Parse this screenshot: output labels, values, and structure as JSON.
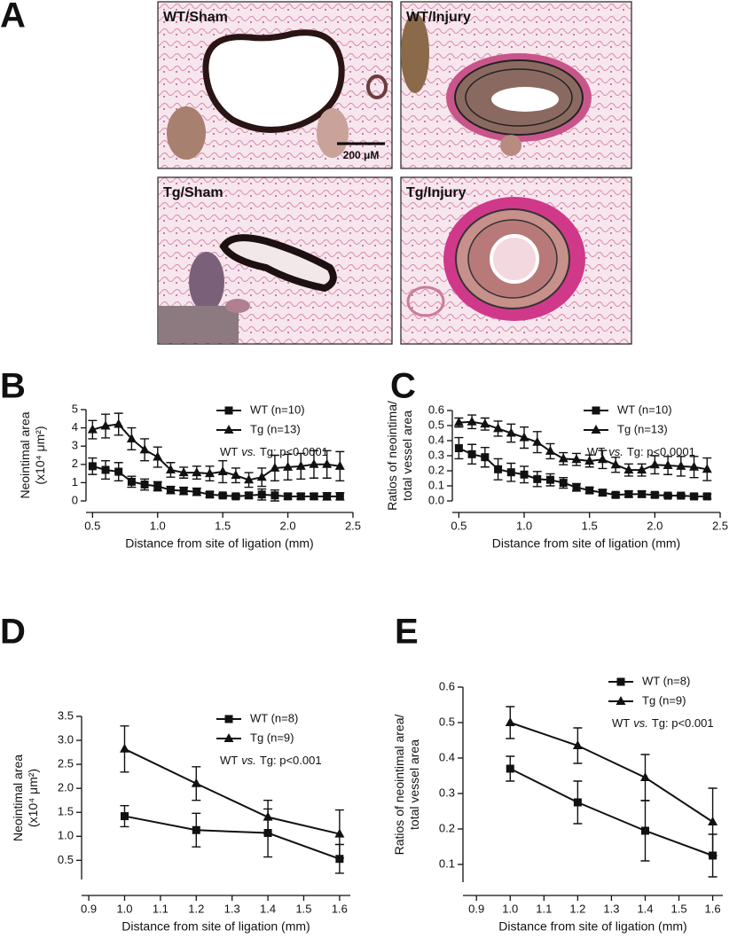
{
  "panel_a": {
    "label": "A",
    "images": [
      {
        "label": "WT/Sham"
      },
      {
        "label": "WT/Injury"
      },
      {
        "label": "Tg/Sham"
      },
      {
        "label": "Tg/Injury"
      }
    ],
    "scale_bar": "200 μM"
  },
  "chart_data": [
    {
      "type": "line",
      "panel_label": "B",
      "ylabel": [
        "Neointimal area",
        "(x10⁴ μm²)"
      ],
      "xlabel": "Distance from site of ligation (mm)",
      "x": [
        0.5,
        0.6,
        0.7,
        0.8,
        0.9,
        1.0,
        1.1,
        1.2,
        1.3,
        1.4,
        1.5,
        1.6,
        1.7,
        1.8,
        1.9,
        2.0,
        2.1,
        2.2,
        2.3,
        2.4
      ],
      "xlim": [
        0.45,
        2.5
      ],
      "xticks": [
        0.5,
        {
          "value": 1,
          "label": "1.0"
        },
        1.5,
        {
          "value": 2,
          "label": "2.0"
        },
        2.5
      ],
      "ylim": [
        0,
        5
      ],
      "yticks": [
        0,
        1,
        2,
        3,
        4,
        5
      ],
      "series": [
        {
          "name": "WT (n=10)",
          "color": "#111111",
          "marker": "square",
          "values": [
            1.9,
            1.7,
            1.6,
            1.05,
            0.9,
            0.8,
            0.6,
            0.55,
            0.5,
            0.35,
            0.3,
            0.25,
            0.3,
            0.35,
            0.3,
            0.25,
            0.25,
            0.25,
            0.25,
            0.25
          ],
          "errors": [
            0.45,
            0.5,
            0.5,
            0.3,
            0.3,
            0.25,
            0.2,
            0.2,
            0.2,
            0.15,
            0.1,
            0.1,
            0.15,
            0.3,
            0.3,
            0.15,
            0.15,
            0.15,
            0.2,
            0.2
          ]
        },
        {
          "name": "Tg (n=13)",
          "color": "#111111",
          "marker": "triangle",
          "values": [
            3.9,
            4.1,
            4.2,
            3.4,
            2.8,
            2.4,
            1.7,
            1.55,
            1.55,
            1.5,
            1.6,
            1.4,
            1.15,
            1.3,
            1.8,
            1.85,
            1.9,
            2.0,
            2.0,
            1.9
          ],
          "errors": [
            0.5,
            0.65,
            0.6,
            0.6,
            0.6,
            0.55,
            0.4,
            0.3,
            0.35,
            0.4,
            0.6,
            0.4,
            0.4,
            0.5,
            0.7,
            0.7,
            0.7,
            0.75,
            0.75,
            0.8
          ]
        }
      ],
      "annotation": [
        "WT",
        "vs.",
        "Tg: p<0.0001"
      ]
    },
    {
      "type": "line",
      "panel_label": "C",
      "ylabel": [
        "Ratios of neointima/",
        "total vessel area"
      ],
      "xlabel": "Distance from site of ligation (mm)",
      "x": [
        0.5,
        0.6,
        0.7,
        0.8,
        0.9,
        1.0,
        1.1,
        1.2,
        1.3,
        1.4,
        1.5,
        1.6,
        1.7,
        1.8,
        1.9,
        2.0,
        2.1,
        2.2,
        2.3,
        2.4
      ],
      "xlim": [
        0.45,
        2.5
      ],
      "xticks": [
        0.5,
        {
          "value": 1,
          "label": "1.0"
        },
        1.5,
        {
          "value": 2,
          "label": "2.0"
        },
        2.5
      ],
      "ylim": [
        0,
        0.6
      ],
      "yticks": [
        {
          "value": 0,
          "label": "0.0"
        },
        0.1,
        0.2,
        0.3,
        0.4,
        0.5,
        0.6
      ],
      "series": [
        {
          "name": "WT (n=10)",
          "color": "#111111",
          "marker": "square",
          "values": [
            0.35,
            0.31,
            0.29,
            0.21,
            0.19,
            0.175,
            0.145,
            0.14,
            0.12,
            0.09,
            0.07,
            0.055,
            0.04,
            0.045,
            0.045,
            0.04,
            0.035,
            0.035,
            0.03,
            0.03
          ],
          "errors": [
            0.07,
            0.065,
            0.065,
            0.07,
            0.06,
            0.055,
            0.05,
            0.04,
            0.035,
            0.025,
            0.02,
            0.02,
            0.015,
            0.02,
            0.02,
            0.015,
            0.01,
            0.01,
            0.015,
            0.015
          ]
        },
        {
          "name": "Tg (n=13)",
          "color": "#111111",
          "marker": "triangle",
          "values": [
            0.52,
            0.525,
            0.51,
            0.48,
            0.45,
            0.42,
            0.39,
            0.33,
            0.28,
            0.275,
            0.265,
            0.275,
            0.24,
            0.205,
            0.205,
            0.24,
            0.235,
            0.23,
            0.225,
            0.21
          ],
          "errors": [
            0.03,
            0.045,
            0.04,
            0.05,
            0.06,
            0.07,
            0.07,
            0.05,
            0.04,
            0.04,
            0.04,
            0.06,
            0.05,
            0.04,
            0.04,
            0.06,
            0.06,
            0.065,
            0.07,
            0.075
          ]
        }
      ],
      "annotation": [
        "WT",
        "vs.",
        "Tg: p<0.0001"
      ]
    },
    {
      "type": "line",
      "panel_label": "D",
      "ylabel": [
        "Neointimal area",
        "(x10⁴ μm²)"
      ],
      "xlabel": "Distance from site of ligation (mm)",
      "x": [
        1.0,
        1.2,
        1.4,
        1.6
      ],
      "xlim": [
        0.88,
        1.63
      ],
      "xticks": [
        0.9,
        {
          "value": 1,
          "label": "1.0"
        },
        1.1,
        1.2,
        1.3,
        1.4,
        1.5,
        1.6
      ],
      "ylim": [
        0.1,
        3.5
      ],
      "yticks": [
        0.5,
        {
          "value": 1,
          "label": "1.0"
        },
        1.5,
        {
          "value": 2,
          "label": "2.0"
        },
        2.5,
        {
          "value": 3,
          "label": "3.0"
        },
        3.5
      ],
      "series": [
        {
          "name": "WT (n=8)",
          "color": "#111111",
          "marker": "square",
          "values": [
            1.42,
            1.13,
            1.07,
            0.53
          ],
          "errors": [
            0.22,
            0.35,
            0.5,
            0.3
          ]
        },
        {
          "name": "Tg (n=9)",
          "color": "#111111",
          "marker": "triangle",
          "values": [
            2.82,
            2.1,
            1.4,
            1.05
          ],
          "errors": [
            0.48,
            0.35,
            0.35,
            0.5
          ]
        }
      ],
      "annotation": [
        "WT",
        "vs.",
        "Tg: p<0.001"
      ]
    },
    {
      "type": "line",
      "panel_label": "E",
      "ylabel": [
        "Ratios of neointimal area/",
        "total vessel area"
      ],
      "xlabel": "Distance from site of ligation (mm)",
      "x": [
        1.0,
        1.2,
        1.4,
        1.6
      ],
      "xlim": [
        0.86,
        1.63
      ],
      "xticks": [
        0.9,
        {
          "value": 1,
          "label": "1.0"
        },
        1.1,
        1.2,
        1.3,
        1.4,
        1.5,
        1.6
      ],
      "ylim": [
        0.05,
        0.6
      ],
      "yticks": [
        0.1,
        0.2,
        0.3,
        0.4,
        0.5,
        0.6
      ],
      "series": [
        {
          "name": "WT (n=8)",
          "color": "#111111",
          "marker": "square",
          "values": [
            0.37,
            0.275,
            0.195,
            0.125
          ],
          "errors": [
            0.035,
            0.06,
            0.085,
            0.06
          ]
        },
        {
          "name": "Tg (n=9)",
          "color": "#111111",
          "marker": "triangle",
          "values": [
            0.5,
            0.435,
            0.345,
            0.22
          ],
          "errors": [
            0.045,
            0.05,
            0.065,
            0.095
          ]
        }
      ],
      "annotation": [
        "WT",
        "vs.",
        "Tg: p<0.001"
      ]
    }
  ]
}
